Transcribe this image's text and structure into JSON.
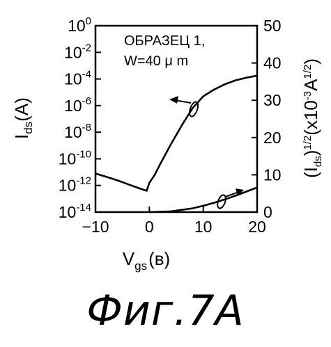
{
  "chart_data": {
    "type": "line",
    "xlabel_main": "V",
    "xlabel_sub": "gs",
    "xlabel_unit": "(в)",
    "ylabel_left_main": "I",
    "ylabel_left_sub": "ds",
    "ylabel_left_unit": "(A)",
    "ylabel_right": "(Ids)1/2(x10-3A1/2)",
    "ylabel_right_parts": {
      "open": "(I",
      "sub": "ds",
      "close": ")",
      "exp1": "1/2",
      "mid": "(x10",
      "exp2": "-3",
      "a": "A",
      "exp3": "1/2",
      "end": ")"
    },
    "xlim": [
      -10,
      20
    ],
    "ylim_left_log10": [
      -14,
      0
    ],
    "ylim_right": [
      0,
      50
    ],
    "x_ticks": [
      {
        "value": -10,
        "label": "−10"
      },
      {
        "value": 0,
        "label": "0"
      },
      {
        "value": 10,
        "label": "10"
      },
      {
        "value": 20,
        "label": "20"
      }
    ],
    "y_left_ticks": [
      {
        "exp": 0,
        "base": "10",
        "sup": "0"
      },
      {
        "exp": -2,
        "base": "10",
        "sup": "-2"
      },
      {
        "exp": -4,
        "base": "10",
        "sup": "-4"
      },
      {
        "exp": -6,
        "base": "10",
        "sup": "-6"
      },
      {
        "exp": -8,
        "base": "10",
        "sup": "-8"
      },
      {
        "exp": -10,
        "base": "10",
        "sup": "-10"
      },
      {
        "exp": -12,
        "base": "10",
        "sup": "-12"
      },
      {
        "exp": -14,
        "base": "10",
        "sup": "-14"
      }
    ],
    "y_right_ticks": [
      {
        "value": 50,
        "label": "50"
      },
      {
        "value": 40,
        "label": "40"
      },
      {
        "value": 30,
        "label": "30"
      },
      {
        "value": 20,
        "label": "20"
      },
      {
        "value": 10,
        "label": "10"
      },
      {
        "value": 0,
        "label": "0"
      }
    ],
    "annotation_line1": "ОБРАЗЕЦ 1,",
    "annotation_line2": "W=40 μ m",
    "series": [
      {
        "axis": "left",
        "x": [
          -10,
          -8,
          -6,
          -4,
          -2,
          -0.5,
          0,
          1,
          2,
          4,
          6,
          8,
          10,
          12,
          14,
          16,
          18,
          20
        ],
        "log10_y": [
          -11.1,
          -11.35,
          -11.6,
          -11.9,
          -12.2,
          -12.4,
          -11.8,
          -11.2,
          -10.4,
          -8.9,
          -7.5,
          -6.2,
          -5.3,
          -4.8,
          -4.4,
          -4.1,
          -3.9,
          -3.75
        ]
      },
      {
        "axis": "right",
        "x": [
          0,
          4,
          6,
          8,
          10,
          12,
          14,
          16,
          18,
          20
        ],
        "y": [
          0,
          0.2,
          0.6,
          1.0,
          1.7,
          2.5,
          3.4,
          4.4,
          5.5,
          6.6
        ]
      }
    ]
  },
  "caption": "Фиг.7A"
}
